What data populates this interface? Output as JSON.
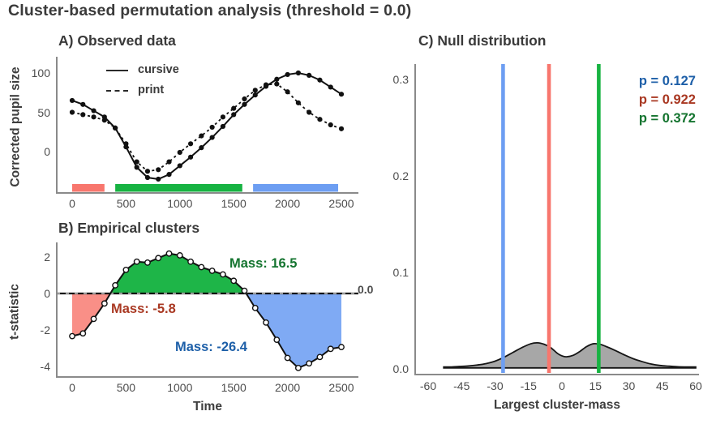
{
  "title": "Cluster-based permutation analysis (threshold = 0.0)",
  "colors": {
    "cluster_red": "#F8766D",
    "cluster_green": "#17B342",
    "cluster_blue": "#6D9EF2",
    "text_red": "#A93822",
    "text_green": "#14742F",
    "text_blue": "#1D5FA8",
    "axis": "#8A8A8A",
    "tick_text": "#4D4D4D",
    "title_text": "#3A3A3A",
    "curve": "#111111",
    "density_fill": "#9B9B9B"
  },
  "chart_data": [
    {
      "id": "A",
      "type": "line",
      "title": "A) Observed data",
      "ylabel": "Corrected pupil size",
      "x": [
        0,
        100,
        200,
        300,
        400,
        500,
        600,
        700,
        800,
        900,
        1000,
        1100,
        1200,
        1300,
        1400,
        1500,
        1600,
        1700,
        1800,
        1900,
        2000,
        2100,
        2200,
        2300,
        2400,
        2500
      ],
      "series": [
        {
          "name": "cursive",
          "style": "solid",
          "values": [
            65,
            60,
            52,
            44,
            30,
            6,
            -20,
            -33,
            -35,
            -29,
            -18,
            -7,
            5,
            18,
            32,
            47,
            60,
            72,
            83,
            92,
            98,
            100,
            97,
            91,
            82,
            73
          ]
        },
        {
          "name": "print",
          "style": "dashed",
          "values": [
            50,
            47,
            44,
            40,
            30,
            10,
            -13,
            -25,
            -23,
            -13,
            -1,
            10,
            20,
            31,
            44,
            55,
            67,
            78,
            85,
            86,
            76,
            62,
            50,
            41,
            34,
            29
          ]
        }
      ],
      "xticks": [
        0,
        500,
        1000,
        1500,
        2000,
        2500
      ],
      "xtick_labels": [
        "0",
        "500",
        "1000",
        "1500",
        "2000",
        "2500"
      ],
      "yticks": [
        0,
        50,
        100
      ],
      "ytick_labels": [
        "0",
        "50",
        "100"
      ],
      "ylim": [
        -45,
        110
      ],
      "cluster_bars": [
        {
          "color": "red",
          "from": 0,
          "to": 300
        },
        {
          "color": "green",
          "from": 400,
          "to": 1580
        },
        {
          "color": "blue",
          "from": 1680,
          "to": 2470
        }
      ],
      "legend_position": "top-left-inside",
      "grid": false
    },
    {
      "id": "B",
      "type": "area-line",
      "title": "B) Empirical clusters",
      "ylabel": "t-statistic",
      "xlabel": "Time",
      "x": [
        0,
        100,
        200,
        300,
        400,
        500,
        600,
        700,
        800,
        900,
        1000,
        1100,
        1200,
        1300,
        1400,
        1500,
        1600,
        1700,
        1800,
        1900,
        2000,
        2100,
        2200,
        2300,
        2400,
        2500
      ],
      "values": [
        -2.35,
        -2.2,
        -1.4,
        -0.55,
        0.45,
        1.3,
        1.75,
        1.7,
        1.95,
        2.2,
        2.1,
        1.75,
        1.45,
        1.25,
        1.05,
        0.7,
        0.15,
        -0.8,
        -1.6,
        -2.55,
        -3.55,
        -4.1,
        -3.85,
        -3.5,
        -3.05,
        -2.95
      ],
      "threshold": 0.0,
      "threshold_label": "0.0",
      "clusters": [
        {
          "color": "red",
          "from": 0,
          "to": 300,
          "mass": -5.8,
          "label": "Mass: -5.8"
        },
        {
          "color": "green",
          "from": 400,
          "to": 1600,
          "mass": 16.5,
          "label": "Mass: 16.5"
        },
        {
          "color": "blue",
          "from": 1700,
          "to": 2500,
          "mass": -26.4,
          "label": "Mass: -26.4"
        }
      ],
      "xticks": [
        0,
        500,
        1000,
        1500,
        2000,
        2500
      ],
      "xtick_labels": [
        "0",
        "500",
        "1000",
        "1500",
        "2000",
        "2500"
      ],
      "yticks": [
        -4,
        -2,
        0,
        2
      ],
      "ytick_labels": [
        "-4",
        "-2",
        "0",
        "2"
      ],
      "ylim": [
        -4.6,
        2.6
      ],
      "grid": false
    },
    {
      "id": "C",
      "type": "density",
      "title": "C) Null distribution",
      "xlabel": "Largest cluster-mass",
      "density_x": [
        -53,
        -50,
        -46,
        -42,
        -38,
        -34,
        -30,
        -26,
        -22,
        -18,
        -14,
        -11,
        -8,
        -5,
        -2,
        0,
        2,
        5,
        8,
        11,
        14,
        17,
        20,
        24,
        28,
        32,
        36,
        40,
        44,
        48,
        52,
        56,
        60
      ],
      "density_y": [
        0.002,
        0.002,
        0.0025,
        0.003,
        0.004,
        0.0055,
        0.008,
        0.012,
        0.017,
        0.022,
        0.026,
        0.027,
        0.0255,
        0.022,
        0.016,
        0.0135,
        0.0125,
        0.014,
        0.018,
        0.023,
        0.026,
        0.0255,
        0.023,
        0.019,
        0.0145,
        0.0105,
        0.0075,
        0.005,
        0.0035,
        0.0028,
        0.0022,
        0.002,
        0.002
      ],
      "vlines": [
        {
          "color": "blue",
          "x": -26.4,
          "p_label": "p = 0.127"
        },
        {
          "color": "red",
          "x": -5.8,
          "p_label": "p = 0.922"
        },
        {
          "color": "green",
          "x": 16.5,
          "p_label": "p = 0.372"
        }
      ],
      "xticks": [
        -60,
        -45,
        -30,
        -15,
        0,
        15,
        30,
        45,
        60
      ],
      "xtick_labels": [
        "-60",
        "-45",
        "-30",
        "-15",
        "0",
        "15",
        "30",
        "45",
        "60"
      ],
      "yticks": [
        0.0,
        0.1,
        0.2,
        0.3
      ],
      "ytick_labels": [
        "0.0",
        "0.1",
        "0.2",
        "0.3"
      ],
      "xlim": [
        -60,
        60
      ],
      "ylim": [
        0,
        0.32
      ],
      "grid": false
    }
  ]
}
